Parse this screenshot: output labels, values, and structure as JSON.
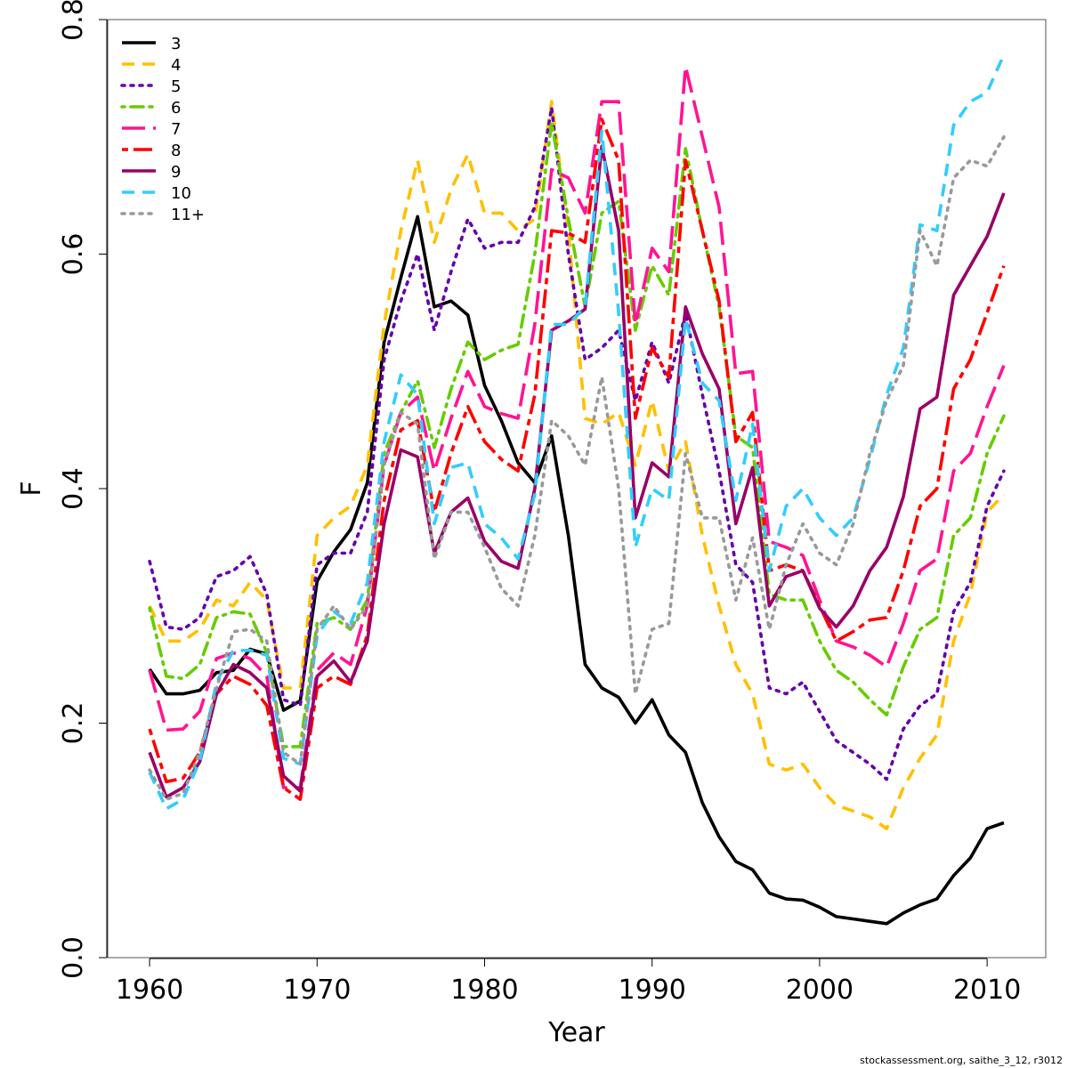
{
  "footer_text": "stockassessment.org, saithe_3_12, r3012",
  "chart_data": {
    "type": "line",
    "title": "",
    "xlabel": "Year",
    "ylabel": "F",
    "xlim": [
      1957.5,
      2013.5
    ],
    "ylim": [
      0,
      0.8
    ],
    "x_ticks": [
      "1960",
      "1970",
      "1980",
      "1990",
      "2000",
      "2010"
    ],
    "y_ticks": [
      "0.0",
      "0.2",
      "0.4",
      "0.6",
      "0.8"
    ],
    "grid": false,
    "legend_position": "top-left",
    "x": [
      1960,
      1961,
      1962,
      1963,
      1964,
      1965,
      1966,
      1967,
      1968,
      1969,
      1970,
      1971,
      1972,
      1973,
      1974,
      1975,
      1976,
      1977,
      1978,
      1979,
      1980,
      1981,
      1982,
      1983,
      1984,
      1985,
      1986,
      1987,
      1988,
      1989,
      1990,
      1991,
      1992,
      1993,
      1994,
      1995,
      1996,
      1997,
      1998,
      1999,
      2000,
      2001,
      2002,
      2003,
      2004,
      2005,
      2006,
      2007,
      2008,
      2009,
      2010,
      2011
    ],
    "series": [
      {
        "name": "3",
        "color": "#000000",
        "dash": "solid",
        "values": [
          0.246,
          0.225,
          0.225,
          0.228,
          0.243,
          0.245,
          0.263,
          0.259,
          0.211,
          0.219,
          0.321,
          0.346,
          0.365,
          0.405,
          0.525,
          0.58,
          0.632,
          0.555,
          0.56,
          0.548,
          0.488,
          0.458,
          0.422,
          0.405,
          0.445,
          0.36,
          0.25,
          0.23,
          0.222,
          0.2,
          0.22,
          0.19,
          0.175,
          0.132,
          0.103,
          0.082,
          0.075,
          0.055,
          0.05,
          0.049,
          0.043,
          0.035,
          0.033,
          0.031,
          0.029,
          0.038,
          0.045,
          0.05,
          0.07,
          0.085,
          0.11,
          0.115
        ]
      },
      {
        "name": "4",
        "color": "#FFC000",
        "dash": "dashed",
        "values": [
          0.3,
          0.27,
          0.27,
          0.28,
          0.305,
          0.3,
          0.32,
          0.305,
          0.23,
          0.23,
          0.36,
          0.375,
          0.385,
          0.42,
          0.54,
          0.62,
          0.68,
          0.61,
          0.655,
          0.685,
          0.635,
          0.635,
          0.62,
          0.63,
          0.73,
          0.62,
          0.46,
          0.455,
          0.465,
          0.42,
          0.475,
          0.415,
          0.44,
          0.36,
          0.3,
          0.25,
          0.225,
          0.165,
          0.16,
          0.165,
          0.145,
          0.13,
          0.125,
          0.12,
          0.11,
          0.145,
          0.17,
          0.19,
          0.27,
          0.31,
          0.38,
          0.395
        ]
      },
      {
        "name": "5",
        "color": "#6600AA",
        "dash": "dotted",
        "values": [
          0.338,
          0.282,
          0.28,
          0.29,
          0.325,
          0.33,
          0.342,
          0.31,
          0.22,
          0.215,
          0.335,
          0.345,
          0.345,
          0.38,
          0.51,
          0.56,
          0.6,
          0.535,
          0.585,
          0.63,
          0.605,
          0.61,
          0.61,
          0.64,
          0.725,
          0.6,
          0.51,
          0.52,
          0.535,
          0.475,
          0.525,
          0.49,
          0.55,
          0.48,
          0.415,
          0.335,
          0.32,
          0.23,
          0.225,
          0.235,
          0.21,
          0.185,
          0.175,
          0.165,
          0.152,
          0.195,
          0.215,
          0.225,
          0.295,
          0.32,
          0.385,
          0.415
        ]
      },
      {
        "name": "6",
        "color": "#66CC00",
        "dash": "dashdot",
        "values": [
          0.298,
          0.24,
          0.238,
          0.25,
          0.29,
          0.295,
          0.293,
          0.26,
          0.18,
          0.18,
          0.285,
          0.29,
          0.28,
          0.305,
          0.43,
          0.465,
          0.492,
          0.435,
          0.485,
          0.525,
          0.51,
          0.518,
          0.523,
          0.6,
          0.712,
          0.63,
          0.555,
          0.635,
          0.645,
          0.535,
          0.59,
          0.565,
          0.69,
          0.62,
          0.555,
          0.445,
          0.435,
          0.31,
          0.305,
          0.305,
          0.27,
          0.245,
          0.235,
          0.22,
          0.207,
          0.248,
          0.28,
          0.29,
          0.36,
          0.375,
          0.43,
          0.462
        ]
      },
      {
        "name": "7",
        "color": "#FF1493",
        "dash": "longdash",
        "values": [
          0.245,
          0.194,
          0.195,
          0.21,
          0.255,
          0.26,
          0.255,
          0.24,
          0.145,
          0.145,
          0.245,
          0.26,
          0.25,
          0.3,
          0.42,
          0.465,
          0.478,
          0.415,
          0.46,
          0.5,
          0.47,
          0.464,
          0.46,
          0.54,
          0.672,
          0.665,
          0.635,
          0.73,
          0.73,
          0.54,
          0.605,
          0.585,
          0.76,
          0.7,
          0.64,
          0.498,
          0.5,
          0.355,
          0.35,
          0.343,
          0.305,
          0.27,
          0.265,
          0.258,
          0.248,
          0.285,
          0.33,
          0.34,
          0.415,
          0.43,
          0.47,
          0.505
        ]
      },
      {
        "name": "8",
        "color": "#FF0000",
        "dash": "twodash",
        "values": [
          0.195,
          0.15,
          0.153,
          0.175,
          0.225,
          0.24,
          0.233,
          0.215,
          0.145,
          0.135,
          0.23,
          0.24,
          0.233,
          0.275,
          0.39,
          0.45,
          0.458,
          0.38,
          0.43,
          0.47,
          0.44,
          0.425,
          0.415,
          0.48,
          0.62,
          0.618,
          0.61,
          0.715,
          0.68,
          0.46,
          0.52,
          0.495,
          0.68,
          0.62,
          0.56,
          0.44,
          0.465,
          0.33,
          0.335,
          0.33,
          0.3,
          0.27,
          0.278,
          0.288,
          0.29,
          0.33,
          0.385,
          0.4,
          0.485,
          0.51,
          0.55,
          0.59
        ]
      },
      {
        "name": "9",
        "color": "#990066",
        "dash": "solid",
        "values": [
          0.175,
          0.137,
          0.145,
          0.167,
          0.225,
          0.25,
          0.243,
          0.23,
          0.155,
          0.142,
          0.24,
          0.253,
          0.235,
          0.27,
          0.37,
          0.433,
          0.427,
          0.345,
          0.38,
          0.392,
          0.355,
          0.338,
          0.332,
          0.4,
          0.535,
          0.543,
          0.553,
          0.692,
          0.62,
          0.375,
          0.422,
          0.41,
          0.555,
          0.515,
          0.485,
          0.37,
          0.418,
          0.3,
          0.325,
          0.33,
          0.298,
          0.282,
          0.3,
          0.33,
          0.35,
          0.393,
          0.468,
          0.478,
          0.565,
          0.59,
          0.615,
          0.652
        ]
      },
      {
        "name": "10",
        "color": "#33CCFF",
        "dash": "dashed",
        "values": [
          0.158,
          0.127,
          0.135,
          0.168,
          0.235,
          0.262,
          0.262,
          0.258,
          0.17,
          0.165,
          0.275,
          0.295,
          0.285,
          0.32,
          0.44,
          0.497,
          0.48,
          0.37,
          0.418,
          0.422,
          0.37,
          0.358,
          0.34,
          0.395,
          0.54,
          0.54,
          0.555,
          0.705,
          0.55,
          0.35,
          0.4,
          0.39,
          0.545,
          0.49,
          0.475,
          0.39,
          0.455,
          0.33,
          0.385,
          0.4,
          0.375,
          0.36,
          0.375,
          0.425,
          0.48,
          0.52,
          0.625,
          0.62,
          0.71,
          0.73,
          0.738,
          0.77
        ]
      },
      {
        "name": "11+",
        "color": "#999999",
        "dash": "dotted",
        "values": [
          0.16,
          0.135,
          0.14,
          0.175,
          0.23,
          0.278,
          0.28,
          0.27,
          0.175,
          0.165,
          0.28,
          0.3,
          0.28,
          0.3,
          0.42,
          0.465,
          0.455,
          0.34,
          0.38,
          0.38,
          0.35,
          0.315,
          0.3,
          0.36,
          0.458,
          0.445,
          0.42,
          0.495,
          0.4,
          0.225,
          0.28,
          0.285,
          0.43,
          0.375,
          0.375,
          0.305,
          0.358,
          0.28,
          0.335,
          0.37,
          0.345,
          0.335,
          0.37,
          0.43,
          0.475,
          0.505,
          0.62,
          0.59,
          0.665,
          0.68,
          0.675,
          0.7
        ]
      }
    ]
  }
}
